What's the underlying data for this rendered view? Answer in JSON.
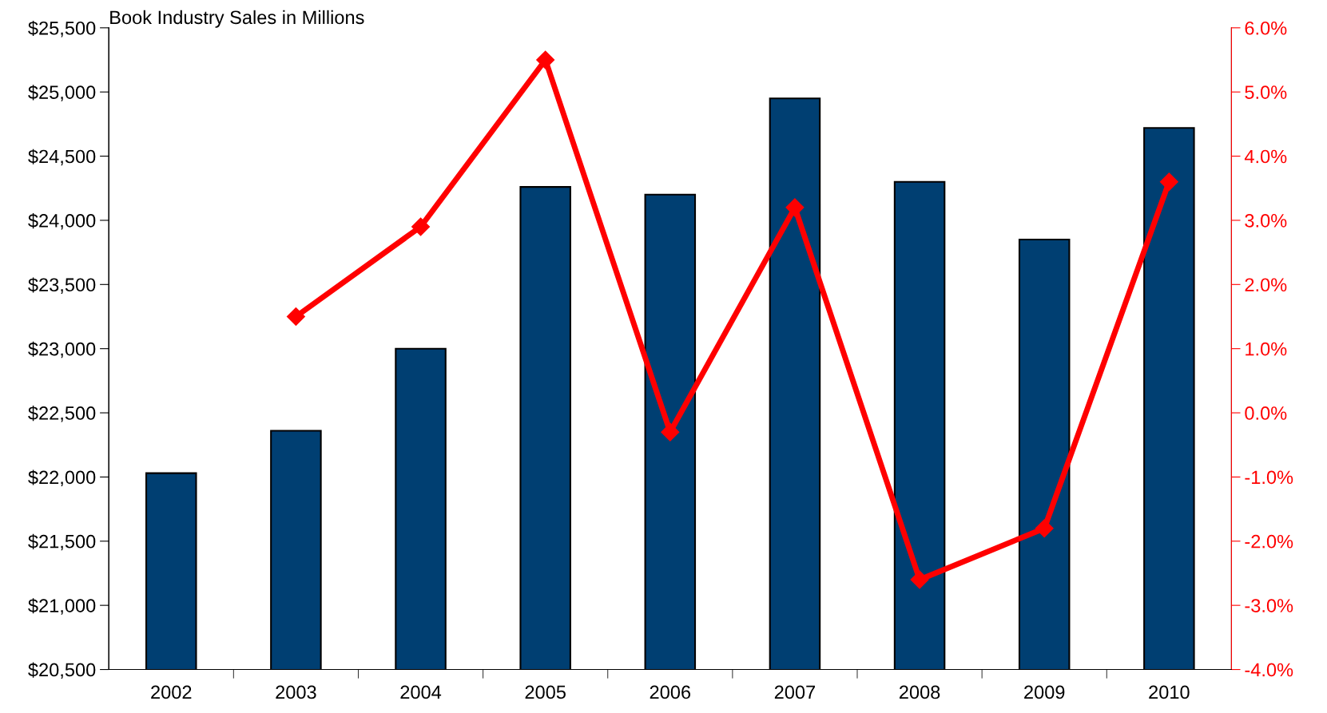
{
  "chart_data": {
    "type": "bar",
    "title": "Book Industry Sales in Millions",
    "categories": [
      "2002",
      "2003",
      "2004",
      "2005",
      "2006",
      "2007",
      "2008",
      "2009",
      "2010"
    ],
    "series": [
      {
        "color": "#003f72",
        "values": [
          22030,
          22360,
          23000,
          24260,
          24200,
          24950,
          24300,
          23850,
          24720
        ]
      },
      {
        "type": "line",
        "axis": "y2",
        "color": "#ff0000",
        "marker": "diamond",
        "values": [
          null,
          1.5,
          2.9,
          5.5,
          -0.3,
          3.2,
          -2.6,
          -1.8,
          3.6
        ]
      }
    ],
    "ylim": [
      20500,
      25500
    ],
    "yticks": [
      {
        "value": 20500,
        "label": "$20,500"
      },
      {
        "value": 21000,
        "label": "$21,000"
      },
      {
        "value": 21500,
        "label": "$21,500"
      },
      {
        "value": 22000,
        "label": "$22,000"
      },
      {
        "value": 22500,
        "label": "$22,500"
      },
      {
        "value": 23000,
        "label": "$23,000"
      },
      {
        "value": 23500,
        "label": "$23,500"
      },
      {
        "value": 24000,
        "label": "$24,000"
      },
      {
        "value": 24500,
        "label": "$24,500"
      },
      {
        "value": 25000,
        "label": "$25,000"
      },
      {
        "value": 25500,
        "label": "$25,500"
      }
    ],
    "y2lim": [
      -4,
      6
    ],
    "y2ticks": [
      {
        "value": -4,
        "label": "-4.0%"
      },
      {
        "value": -3,
        "label": "-3.0%"
      },
      {
        "value": -2,
        "label": "-2.0%"
      },
      {
        "value": -1,
        "label": "-1.0%"
      },
      {
        "value": 0,
        "label": "0.0%"
      },
      {
        "value": 1,
        "label": "1.0%"
      },
      {
        "value": 2,
        "label": "2.0%"
      },
      {
        "value": 3,
        "label": "3.0%"
      },
      {
        "value": 4,
        "label": "4.0%"
      },
      {
        "value": 5,
        "label": "5.0%"
      },
      {
        "value": 6,
        "label": "6.0%"
      }
    ],
    "grid": false
  }
}
